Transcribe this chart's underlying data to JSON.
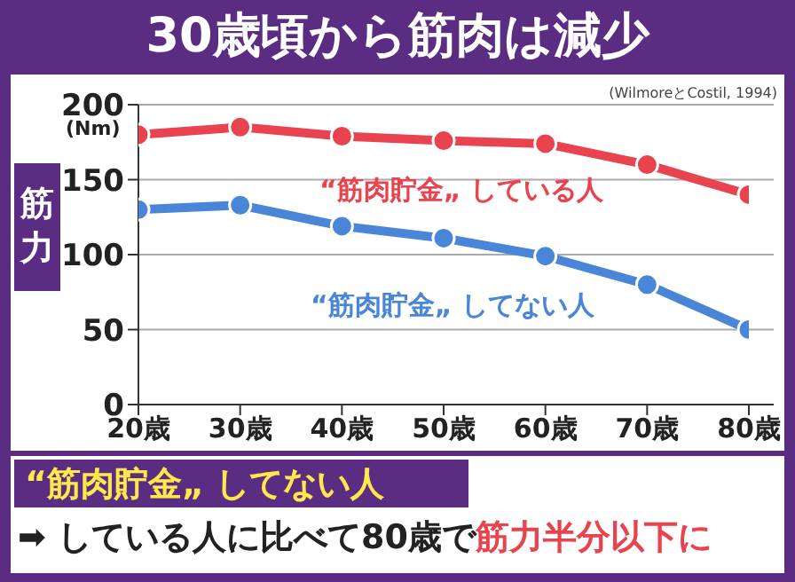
{
  "chart_data": {
    "type": "line",
    "title": "30歳頃から筋肉は減少",
    "ylabel": "筋力",
    "categories": [
      "20歳",
      "30歳",
      "40歳",
      "50歳",
      "60歳",
      "70歳",
      "80歳"
    ],
    "series": [
      {
        "name": "“筋肉貯金„ している人",
        "color": "#e8434f",
        "values": [
          180,
          185,
          179,
          176,
          174,
          160,
          140
        ]
      },
      {
        "name": "“筋肉貯金„ してない人",
        "color": "#4a86d8",
        "values": [
          130,
          133,
          119,
          111,
          99,
          80,
          50
        ]
      }
    ],
    "ylim": [
      0,
      200
    ],
    "yticks": [
      0,
      50,
      100,
      150,
      200
    ],
    "grid": "y",
    "marker": "circle",
    "line_style": "solid",
    "annotations": [
      "(Nm)",
      "(WilmoreとCostil, 1994)",
      "“筋肉貯金„ してない人",
      "➡ している人に比べて80歳で",
      "筋力半分以下に"
    ]
  }
}
